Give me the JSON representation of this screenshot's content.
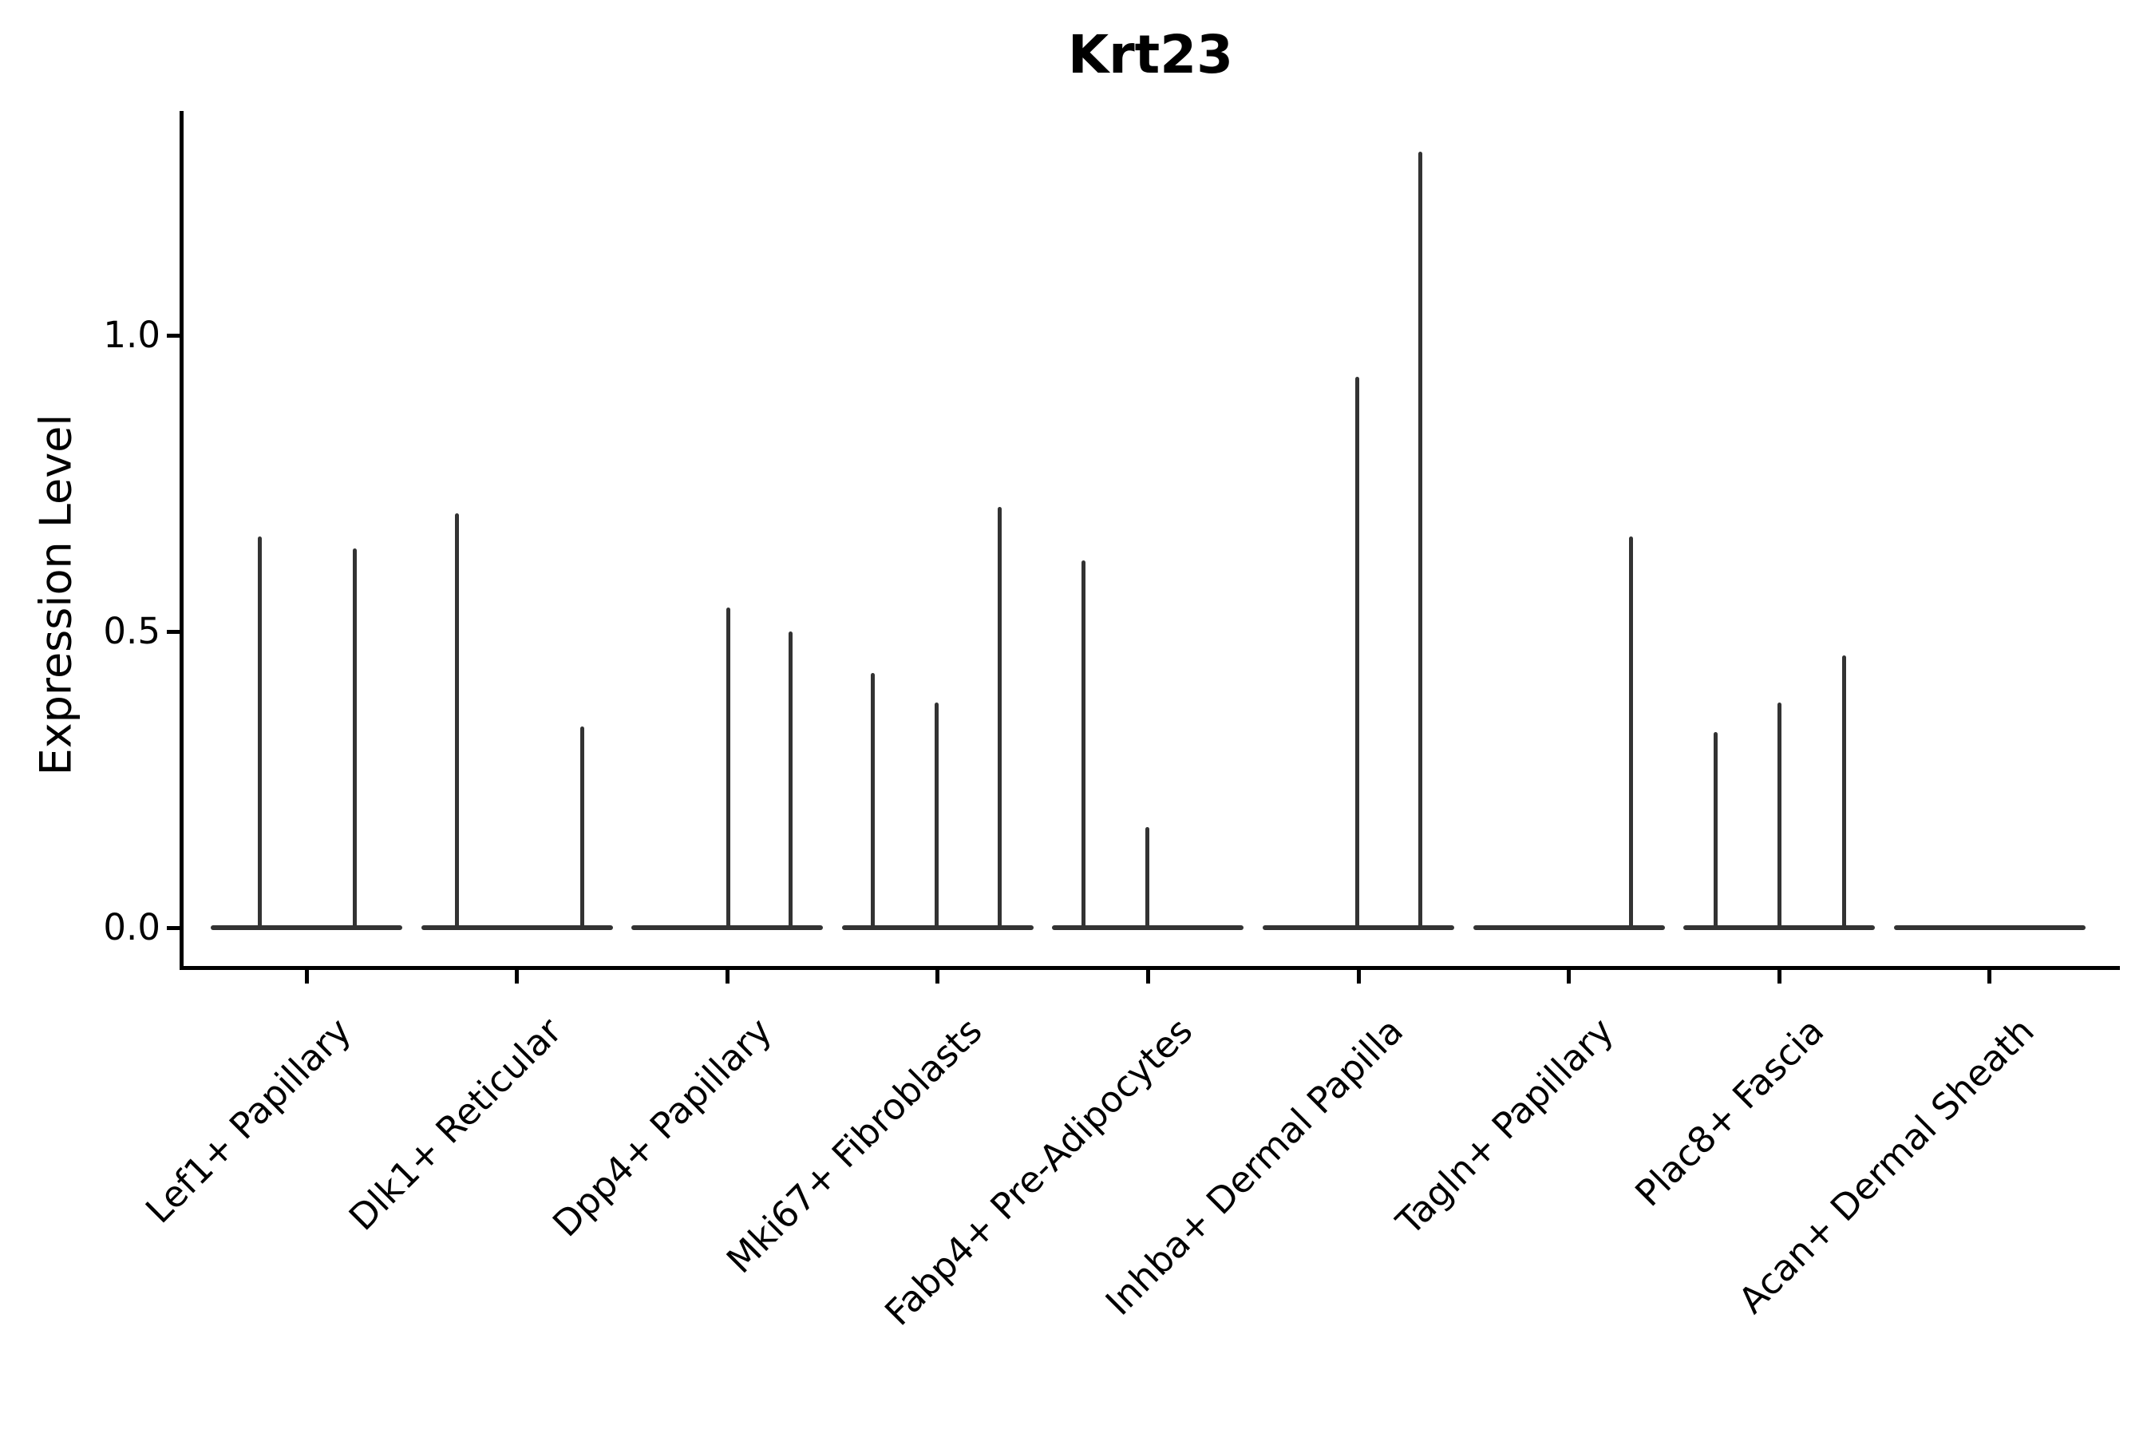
{
  "title": "Krt23",
  "y_axis": {
    "label": "Expression Level",
    "tick_labels": [
      "0.0",
      "0.5",
      "1.0"
    ]
  },
  "colors": {
    "violin": "#333333",
    "axis": "#000000",
    "background": "#ffffff"
  },
  "chart_data": {
    "type": "violin",
    "title": "Krt23",
    "xlabel": "",
    "ylabel": "Expression Level",
    "yticks": [
      0.0,
      0.5,
      1.0
    ],
    "ylim": [
      -0.07,
      1.38
    ],
    "grid": false,
    "legend_position": "none",
    "description": "Violin plot of Krt23 expression; violins collapse to a flat line at 0 with thin vertical spikes where rare cells express, max spike 1.31 in Inhba+ Dermal Papilla",
    "categories": [
      "Lef1+ Papillary",
      "Dlk1+ Reticular",
      "Dpp4+ Papillary",
      "Mki67+ Fibroblasts",
      "Fabp4+ Pre-Adipocytes",
      "Inhba+ Dermal Papilla",
      "Tagln+ Papillary",
      "Plac8+ Fascia",
      "Acan+ Dermal Sheath"
    ],
    "series": [
      {
        "category": "Lef1+ Papillary",
        "spikes": [
          {
            "dx": -59,
            "value": 0.66
          },
          {
            "dx": 60,
            "value": 0.64
          }
        ]
      },
      {
        "category": "Dlk1+ Reticular",
        "spikes": [
          {
            "dx": -75,
            "value": 0.7
          },
          {
            "dx": 82,
            "value": 0.34
          }
        ]
      },
      {
        "category": "Dpp4+ Papillary",
        "spikes": [
          {
            "dx": 1,
            "value": 0.54
          },
          {
            "dx": 79,
            "value": 0.5
          }
        ]
      },
      {
        "category": "Mki67+ Fibroblasts",
        "spikes": [
          {
            "dx": -81,
            "value": 0.43
          },
          {
            "dx": -1,
            "value": 0.38
          },
          {
            "dx": 78,
            "value": 0.71
          }
        ]
      },
      {
        "category": "Fabp4+ Pre-Adipocytes",
        "spikes": [
          {
            "dx": -81,
            "value": 0.62
          },
          {
            "dx": -1,
            "value": 0.17
          }
        ]
      },
      {
        "category": "Inhba+ Dermal Papilla",
        "spikes": [
          {
            "dx": -2,
            "value": 0.93
          },
          {
            "dx": 77,
            "value": 1.31
          }
        ]
      },
      {
        "category": "Tagln+ Papillary",
        "spikes": [
          {
            "dx": 78,
            "value": 0.66
          }
        ]
      },
      {
        "category": "Plac8+ Fascia",
        "spikes": [
          {
            "dx": -80,
            "value": 0.33
          },
          {
            "dx": 0,
            "value": 0.38
          },
          {
            "dx": 81,
            "value": 0.46
          }
        ]
      },
      {
        "category": "Acan+ Dermal Sheath",
        "spikes": []
      }
    ]
  }
}
